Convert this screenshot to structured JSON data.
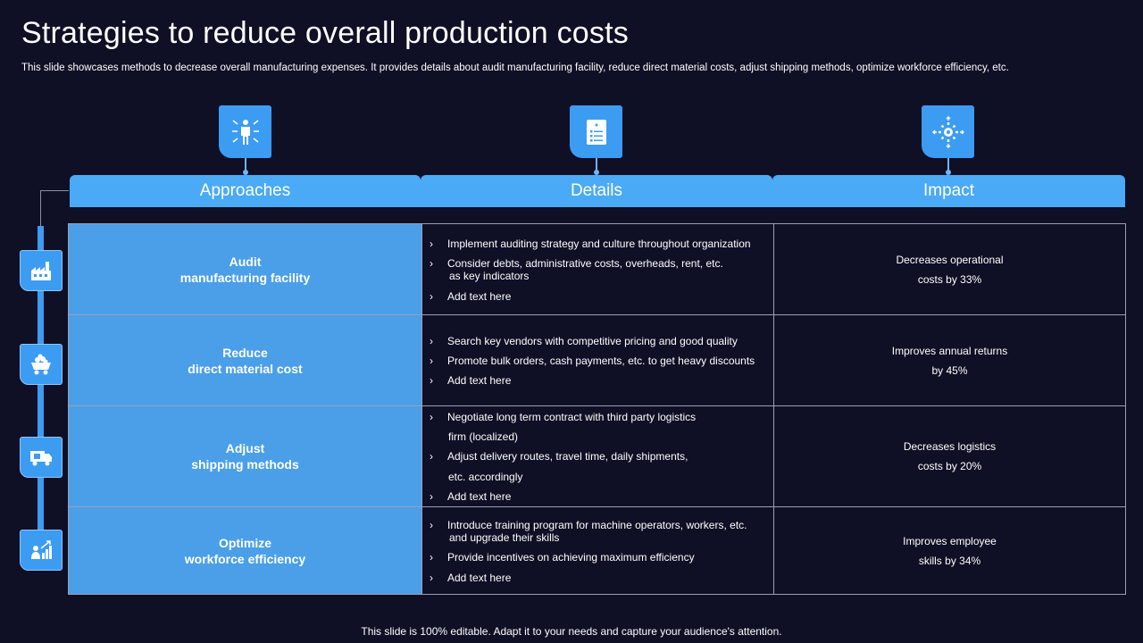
{
  "title": "Strategies to reduce overall production costs",
  "subtitle": "This slide showcases methods to decrease overall manufacturing expenses. It provides details about audit manufacturing facility, reduce direct material costs, adjust shipping methods, optimize workforce efficiency, etc.",
  "footer": "This slide is 100% editable. Adapt it to your needs and capture your audience's attention.",
  "colors": {
    "background": "#0f0f26",
    "accent": "#3b9cf1",
    "header": "#4aaaf5",
    "approach_cell": "#4a9fe8"
  },
  "headers": {
    "approaches": "Approaches",
    "details": "Details",
    "impact": "Impact",
    "icons": [
      "person-arrows-icon",
      "document-list-icon",
      "gear-arrows-icon"
    ]
  },
  "rows": [
    {
      "icon": "factory-icon",
      "approach": [
        "Audit",
        "manufacturing facility"
      ],
      "details": [
        "Implement auditing strategy and culture throughout organization",
        "Consider debts, administrative costs, overheads, rent, etc.",
        "as key indicators",
        "Add text here"
      ],
      "impact": [
        "Decreases operational",
        "costs by 33%"
      ]
    },
    {
      "icon": "mining-cart-icon",
      "approach": [
        "Reduce",
        "direct material cost"
      ],
      "details": [
        "Search key vendors with competitive pricing and good quality",
        "Promote bulk orders, cash payments, etc. to get heavy discounts",
        "Add text here"
      ],
      "impact": [
        "Improves annual returns",
        "by 45%"
      ]
    },
    {
      "icon": "delivery-truck-icon",
      "approach": [
        "Adjust",
        "shipping methods"
      ],
      "details": [
        "Negotiate long term contract with third party logistics",
        "firm (localized)",
        "Adjust delivery routes, travel time, daily shipments,",
        "etc. accordingly",
        "Add text here"
      ],
      "impact": [
        "Decreases logistics",
        "costs by 20%"
      ]
    },
    {
      "icon": "growth-chart-icon",
      "approach": [
        "Optimize",
        "workforce efficiency"
      ],
      "details": [
        "Introduce training program for machine operators, workers, etc.",
        "and upgrade their skills",
        "Provide incentives on achieving maximum efficiency",
        "Add text here"
      ],
      "impact": [
        "Improves employee",
        "skills by 34%"
      ]
    }
  ]
}
